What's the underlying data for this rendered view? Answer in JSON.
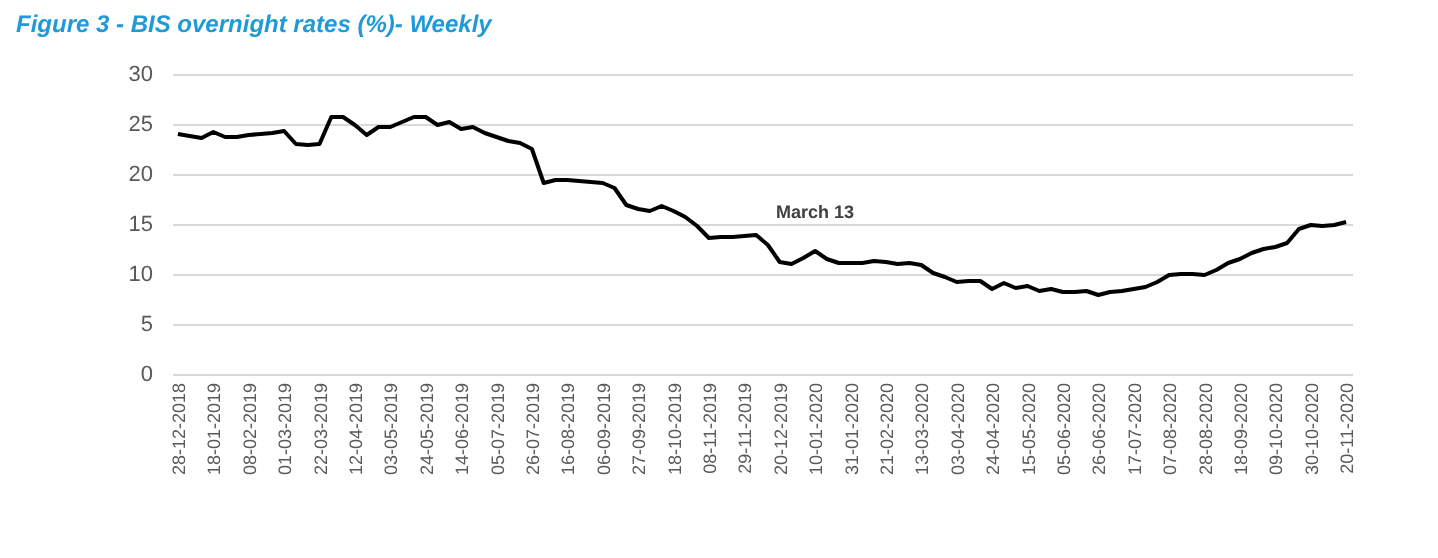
{
  "chart_data": {
    "type": "line",
    "title": "Figure 3 - BIS overnight rates (%)- Weekly",
    "categories": [
      "28-12-2018",
      null,
      null,
      "18-01-2019",
      null,
      null,
      "08-02-2019",
      null,
      null,
      "01-03-2019",
      null,
      null,
      "22-03-2019",
      null,
      null,
      "12-04-2019",
      null,
      null,
      "03-05-2019",
      null,
      null,
      "24-05-2019",
      null,
      null,
      "14-06-2019",
      null,
      null,
      "05-07-2019",
      null,
      null,
      "26-07-2019",
      null,
      null,
      "16-08-2019",
      null,
      null,
      "06-09-2019",
      null,
      null,
      "27-09-2019",
      null,
      null,
      "18-10-2019",
      null,
      null,
      "08-11-2019",
      null,
      null,
      "29-11-2019",
      null,
      null,
      "20-12-2019",
      null,
      null,
      "10-01-2020",
      null,
      null,
      "31-01-2020",
      null,
      null,
      "21-02-2020",
      null,
      null,
      "13-03-2020",
      null,
      null,
      "03-04-2020",
      null,
      null,
      "24-04-2020",
      null,
      null,
      "15-05-2020",
      null,
      null,
      "05-06-2020",
      null,
      null,
      "26-06-2020",
      null,
      null,
      "17-07-2020",
      null,
      null,
      "07-08-2020",
      null,
      null,
      "28-08-2020",
      null,
      null,
      "18-09-2020",
      null,
      null,
      "09-10-2020",
      null,
      null,
      "30-10-2020",
      null,
      null,
      "20-11-2020"
    ],
    "series": [
      {
        "color": "#000000",
        "values": [
          24.0,
          23.8,
          23.6,
          24.2,
          23.7,
          23.7,
          23.9,
          24.0,
          24.1,
          24.3,
          23.0,
          22.9,
          23.0,
          25.7,
          25.7,
          24.9,
          23.9,
          24.7,
          24.7,
          25.2,
          25.7,
          25.7,
          24.9,
          25.2,
          24.5,
          24.7,
          24.1,
          23.7,
          23.3,
          23.1,
          22.5,
          19.1,
          19.4,
          19.4,
          19.3,
          19.2,
          19.1,
          18.6,
          16.9,
          16.5,
          16.3,
          16.8,
          16.3,
          15.7,
          14.8,
          13.6,
          13.7,
          13.7,
          13.8,
          13.9,
          12.9,
          11.2,
          11.0,
          11.6,
          12.3,
          11.5,
          11.1,
          11.1,
          11.1,
          11.3,
          11.2,
          11.0,
          11.1,
          10.9,
          10.1,
          9.7,
          9.2,
          9.3,
          9.3,
          8.5,
          9.1,
          8.6,
          8.8,
          8.3,
          8.5,
          8.2,
          8.2,
          8.3,
          7.9,
          8.2,
          8.3,
          8.5,
          8.7,
          9.2,
          9.9,
          10.0,
          10.0,
          9.9,
          10.4,
          11.1,
          11.5,
          12.1,
          12.5,
          12.7,
          13.1,
          14.5,
          14.9,
          14.8,
          14.9,
          15.2
        ]
      }
    ],
    "ylim": [
      0,
      30
    ],
    "yticks": [
      0,
      5,
      10,
      15,
      20,
      25,
      30
    ],
    "grid": "y",
    "annotations": [
      "March 13"
    ]
  }
}
